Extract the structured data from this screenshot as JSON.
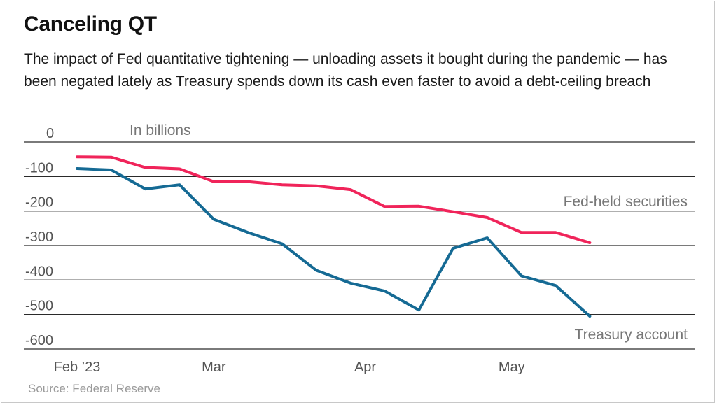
{
  "title": "Canceling QT",
  "subtitle": "The impact of Fed quantitative tightening — unloading assets it bought during the pandemic — has been negated lately as Treasury spends down its cash even faster to avoid a debt-ceiling breach",
  "source": "Source: Federal Reserve",
  "colors": {
    "fed": "#f0245a",
    "treasury": "#156a94",
    "grid": "#2a2a2a"
  },
  "chart_data": {
    "type": "line",
    "unit_note": "In billions",
    "ylim": [
      -600,
      0
    ],
    "yticks": [
      0,
      -100,
      -200,
      -300,
      -400,
      -500,
      -600
    ],
    "ytick_labels": [
      "0",
      "-100",
      "-200",
      "-300",
      "-400",
      "-500",
      "-600"
    ],
    "xlim": [
      "2023-02-01",
      "2023-05-31"
    ],
    "xticks": [
      {
        "date": "2023-02-01",
        "label": "Feb ’23"
      },
      {
        "date": "2023-03-01",
        "label": "Mar"
      },
      {
        "date": "2023-04-01",
        "label": "Apr"
      },
      {
        "date": "2023-05-01",
        "label": "May"
      }
    ],
    "grid": true,
    "series": [
      {
        "name": "Fed-held securities",
        "color": "#f0245a",
        "points": [
          [
            "2023-02-01",
            -43
          ],
          [
            "2023-02-08",
            -44
          ],
          [
            "2023-02-15",
            -74
          ],
          [
            "2023-02-22",
            -78
          ],
          [
            "2023-03-01",
            -115
          ],
          [
            "2023-03-08",
            -115
          ],
          [
            "2023-03-15",
            -124
          ],
          [
            "2023-03-22",
            -127
          ],
          [
            "2023-03-29",
            -138
          ],
          [
            "2023-04-05",
            -187
          ],
          [
            "2023-04-12",
            -186
          ],
          [
            "2023-04-19",
            -202
          ],
          [
            "2023-04-26",
            -219
          ],
          [
            "2023-05-03",
            -262
          ],
          [
            "2023-05-10",
            -262
          ],
          [
            "2023-05-17",
            -292
          ]
        ]
      },
      {
        "name": "Treasury account",
        "color": "#156a94",
        "points": [
          [
            "2023-02-01",
            -77
          ],
          [
            "2023-02-08",
            -81
          ],
          [
            "2023-02-15",
            -136
          ],
          [
            "2023-02-22",
            -124
          ],
          [
            "2023-03-01",
            -224
          ],
          [
            "2023-03-08",
            -262
          ],
          [
            "2023-03-15",
            -295
          ],
          [
            "2023-03-22",
            -372
          ],
          [
            "2023-03-29",
            -409
          ],
          [
            "2023-04-05",
            -432
          ],
          [
            "2023-04-12",
            -487
          ],
          [
            "2023-04-19",
            -308
          ],
          [
            "2023-04-26",
            -278
          ],
          [
            "2023-05-03",
            -388
          ],
          [
            "2023-05-10",
            -416
          ],
          [
            "2023-05-17",
            -505
          ]
        ]
      }
    ]
  }
}
